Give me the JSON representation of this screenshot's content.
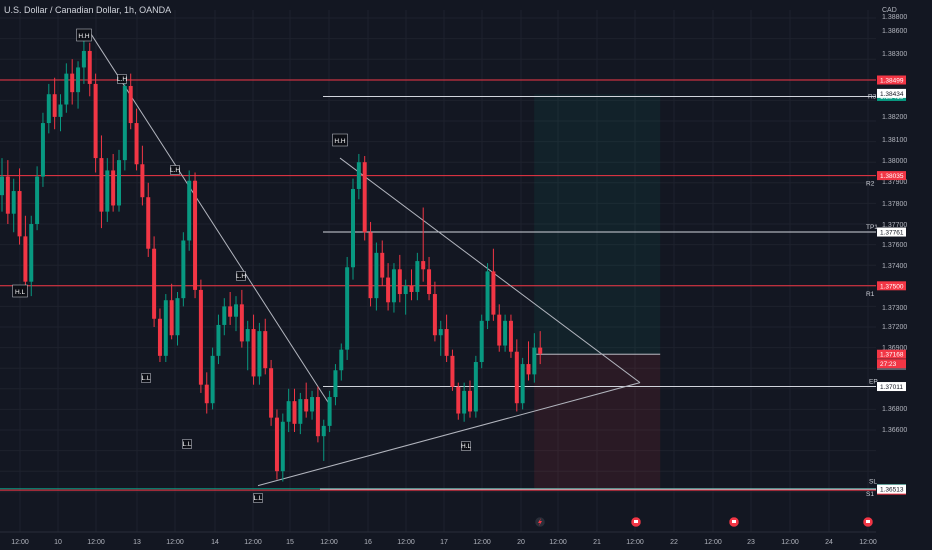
{
  "header": {
    "symbol_title": "U.S. Dollar / Canadian Dollar, 1h, OANDA"
  },
  "chart_data": {
    "type": "candlestick",
    "currency_label": "CAD",
    "y_ticks": [
      "1.38800",
      "1.38600",
      "1.38300",
      "1.38200",
      "1.38100",
      "1.38000",
      "1.37900",
      "1.37800",
      "1.37700",
      "1.37600",
      "1.37400",
      "1.37300",
      "1.37200",
      "1.36900",
      "1.36800",
      "1.36600"
    ],
    "x_ticks": [
      "12:00",
      "10",
      "12:00",
      "13",
      "12:00",
      "14",
      "12:00",
      "15",
      "12:00",
      "16",
      "12:00",
      "17",
      "12:00",
      "20",
      "12:00",
      "21",
      "12:00",
      "22",
      "12:00",
      "23",
      "12:00",
      "24",
      "12:00"
    ],
    "horizontal_levels": [
      {
        "value": 1.38499,
        "label": "1.38499",
        "color": "#f23645"
      },
      {
        "value": 1.38035,
        "label": "1.38035",
        "color": "#f23645",
        "tag": "R2"
      },
      {
        "value": 1.375,
        "label": "1.37500",
        "color": "#f23645",
        "tag": "R1"
      },
      {
        "value": 1.36515,
        "label": "1.36515",
        "color": "#089981",
        "tag": "SL"
      },
      {
        "value": 1.36508,
        "label": "1.36508",
        "color": "#f23645"
      }
    ],
    "ray_levels": [
      {
        "value": 1.38419,
        "label": "1.38419",
        "tag": "R3",
        "box": "green"
      },
      {
        "value": 1.37761,
        "label": "1.37761",
        "tag": "TP1",
        "box": "white"
      },
      {
        "value": 1.37011,
        "label": "1.37011",
        "tag": "EP",
        "box": "white"
      },
      {
        "value": 1.36513,
        "label": "1.36513",
        "tag": "S1",
        "box": "white"
      }
    ],
    "extra_price_labels": [
      {
        "value": 1.38434,
        "label": "1.38434",
        "box": "white"
      },
      {
        "value": 1.37168,
        "label": "1.37168",
        "box": "red"
      },
      {
        "value": 1.37113,
        "label": "1.37113",
        "box": "gray"
      }
    ],
    "countdown_label": "27:23",
    "swing_labels": [
      "H.H",
      "L.H",
      "L.H",
      "L.H",
      "H.L",
      "L.L",
      "L.L",
      "L.L",
      "H.H",
      "H.L"
    ],
    "candles": [
      [
        1.3794,
        1.3812,
        1.3786,
        1.3803
      ],
      [
        1.3803,
        1.3811,
        1.378,
        1.3785
      ],
      [
        1.3785,
        1.3802,
        1.3776,
        1.3796
      ],
      [
        1.3796,
        1.3807,
        1.377,
        1.3774
      ],
      [
        1.3774,
        1.3784,
        1.3747,
        1.3752
      ],
      [
        1.3752,
        1.3784,
        1.3745,
        1.378
      ],
      [
        1.378,
        1.3808,
        1.3777,
        1.3803
      ],
      [
        1.3803,
        1.3834,
        1.3798,
        1.3829
      ],
      [
        1.3829,
        1.3848,
        1.3824,
        1.3843
      ],
      [
        1.3843,
        1.3851,
        1.3826,
        1.3832
      ],
      [
        1.3832,
        1.3843,
        1.3825,
        1.3838
      ],
      [
        1.3838,
        1.3858,
        1.3834,
        1.3853
      ],
      [
        1.3853,
        1.386,
        1.3838,
        1.3844
      ],
      [
        1.3844,
        1.3859,
        1.3836,
        1.3856
      ],
      [
        1.3856,
        1.3869,
        1.3848,
        1.3864
      ],
      [
        1.3864,
        1.3868,
        1.3842,
        1.3848
      ],
      [
        1.3848,
        1.3853,
        1.3805,
        1.3812
      ],
      [
        1.3812,
        1.3823,
        1.3778,
        1.3786
      ],
      [
        1.3786,
        1.3812,
        1.3781,
        1.3806
      ],
      [
        1.3806,
        1.3814,
        1.3786,
        1.3789
      ],
      [
        1.3789,
        1.3816,
        1.3786,
        1.3811
      ],
      [
        1.3811,
        1.3852,
        1.3806,
        1.3847
      ],
      [
        1.3847,
        1.3853,
        1.3826,
        1.3829
      ],
      [
        1.3829,
        1.3836,
        1.3806,
        1.3809
      ],
      [
        1.3809,
        1.3818,
        1.3789,
        1.3793
      ],
      [
        1.3793,
        1.38,
        1.3764,
        1.3768
      ],
      [
        1.3768,
        1.3774,
        1.373,
        1.3734
      ],
      [
        1.3734,
        1.3739,
        1.3713,
        1.3716
      ],
      [
        1.3716,
        1.3746,
        1.3713,
        1.3743
      ],
      [
        1.3743,
        1.3751,
        1.3724,
        1.3726
      ],
      [
        1.3726,
        1.3747,
        1.3721,
        1.3744
      ],
      [
        1.3744,
        1.3776,
        1.374,
        1.3772
      ],
      [
        1.3772,
        1.3806,
        1.3767,
        1.3801
      ],
      [
        1.3801,
        1.3805,
        1.3744,
        1.3748
      ],
      [
        1.3748,
        1.3753,
        1.3698,
        1.3702
      ],
      [
        1.3702,
        1.3708,
        1.3688,
        1.3693
      ],
      [
        1.3693,
        1.372,
        1.369,
        1.3716
      ],
      [
        1.3716,
        1.3736,
        1.3712,
        1.3731
      ],
      [
        1.3731,
        1.3744,
        1.3726,
        1.374
      ],
      [
        1.374,
        1.3747,
        1.3731,
        1.3735
      ],
      [
        1.3735,
        1.3745,
        1.3728,
        1.3741
      ],
      [
        1.3741,
        1.3748,
        1.372,
        1.3723
      ],
      [
        1.3723,
        1.3733,
        1.3709,
        1.3729
      ],
      [
        1.3729,
        1.3736,
        1.3702,
        1.3706
      ],
      [
        1.3706,
        1.3732,
        1.3702,
        1.3728
      ],
      [
        1.3728,
        1.3734,
        1.3707,
        1.371
      ],
      [
        1.371,
        1.3714,
        1.3682,
        1.3686
      ],
      [
        1.3686,
        1.369,
        1.3656,
        1.366
      ],
      [
        1.366,
        1.3688,
        1.3655,
        1.3684
      ],
      [
        1.3684,
        1.37,
        1.3679,
        1.3694
      ],
      [
        1.3694,
        1.37,
        1.3679,
        1.3683
      ],
      [
        1.3683,
        1.3698,
        1.3678,
        1.3695
      ],
      [
        1.3695,
        1.3703,
        1.3686,
        1.3689
      ],
      [
        1.3689,
        1.3699,
        1.3685,
        1.3696
      ],
      [
        1.3696,
        1.3701,
        1.3674,
        1.3677
      ],
      [
        1.3677,
        1.3685,
        1.3665,
        1.3682
      ],
      [
        1.3682,
        1.3699,
        1.3679,
        1.3696
      ],
      [
        1.3696,
        1.3712,
        1.3692,
        1.3709
      ],
      [
        1.3709,
        1.3722,
        1.3704,
        1.3719
      ],
      [
        1.3719,
        1.3764,
        1.3714,
        1.3759
      ],
      [
        1.3759,
        1.3802,
        1.3753,
        1.3797
      ],
      [
        1.3797,
        1.3814,
        1.3792,
        1.381
      ],
      [
        1.381,
        1.3813,
        1.3772,
        1.3776
      ],
      [
        1.3776,
        1.3781,
        1.374,
        1.3744
      ],
      [
        1.3744,
        1.3771,
        1.3738,
        1.3766
      ],
      [
        1.3766,
        1.3772,
        1.375,
        1.3754
      ],
      [
        1.3754,
        1.3761,
        1.3738,
        1.3742
      ],
      [
        1.3742,
        1.3761,
        1.3737,
        1.3758
      ],
      [
        1.3758,
        1.3765,
        1.3742,
        1.3746
      ],
      [
        1.3746,
        1.3753,
        1.3736,
        1.375
      ],
      [
        1.375,
        1.3758,
        1.3743,
        1.3747
      ],
      [
        1.3747,
        1.3766,
        1.3743,
        1.3762
      ],
      [
        1.3762,
        1.3788,
        1.3752,
        1.3758
      ],
      [
        1.3758,
        1.3764,
        1.3743,
        1.3746
      ],
      [
        1.3746,
        1.3752,
        1.3723,
        1.3726
      ],
      [
        1.3726,
        1.3733,
        1.3716,
        1.3729
      ],
      [
        1.3729,
        1.3736,
        1.3713,
        1.3716
      ],
      [
        1.3716,
        1.3719,
        1.3699,
        1.3701
      ],
      [
        1.3701,
        1.3703,
        1.3685,
        1.3688
      ],
      [
        1.3688,
        1.3703,
        1.3684,
        1.3699
      ],
      [
        1.3699,
        1.3704,
        1.3686,
        1.3689
      ],
      [
        1.3689,
        1.3716,
        1.3686,
        1.3713
      ],
      [
        1.3713,
        1.3736,
        1.371,
        1.3733
      ],
      [
        1.3733,
        1.3761,
        1.3729,
        1.3757
      ],
      [
        1.3757,
        1.3768,
        1.3733,
        1.3736
      ],
      [
        1.3736,
        1.3741,
        1.3718,
        1.3721
      ],
      [
        1.3721,
        1.3736,
        1.3718,
        1.3733
      ],
      [
        1.3733,
        1.3736,
        1.3715,
        1.3718
      ],
      [
        1.3718,
        1.3724,
        1.3689,
        1.3693
      ],
      [
        1.3693,
        1.3715,
        1.369,
        1.3712
      ],
      [
        1.3712,
        1.3723,
        1.3704,
        1.3707
      ],
      [
        1.3707,
        1.3727,
        1.3703,
        1.372
      ],
      [
        1.372,
        1.3728,
        1.3712,
        1.3717
      ]
    ]
  },
  "bottom_icons": [
    "lightning-icon",
    "flag-icon",
    "flag-icon",
    "flag-icon"
  ],
  "colors": {
    "up": "#089981",
    "down": "#f23645",
    "background": "#131722",
    "grid": "#1e222d",
    "line_white": "#d1d4dc"
  }
}
